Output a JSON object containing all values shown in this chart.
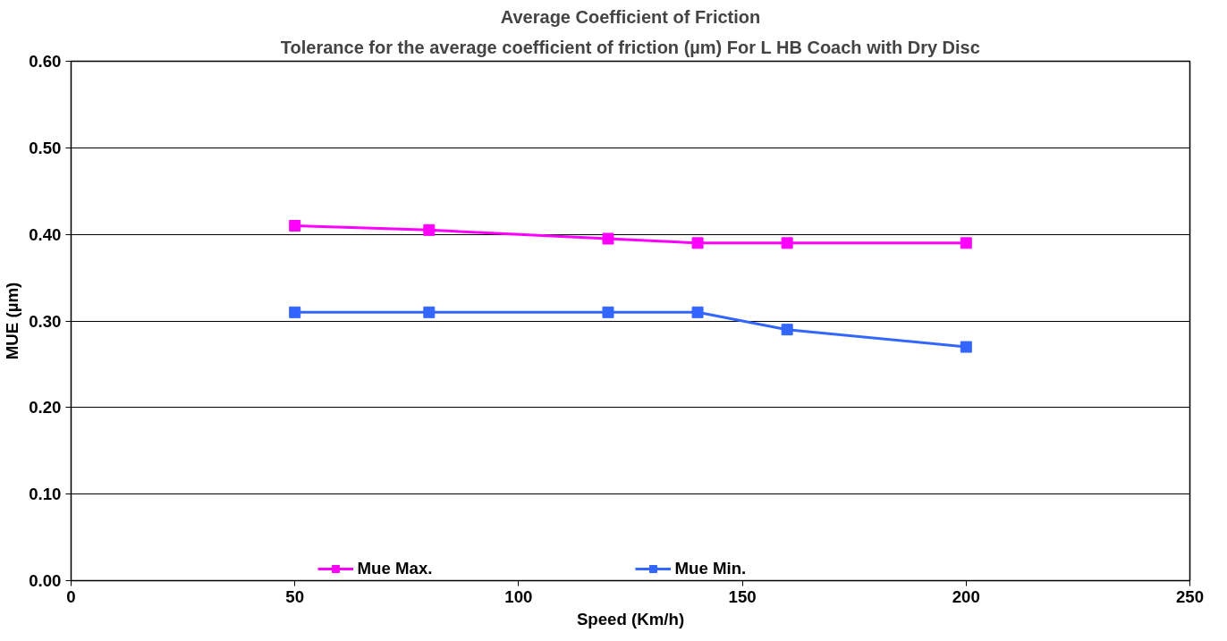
{
  "chart_data": {
    "type": "line",
    "title": "Average Coefficient of Friction",
    "subtitle": "Tolerance for the average coefficient of friction (µm) For L HB Coach with Dry Disc",
    "xlabel": "Speed (Km/h)",
    "ylabel": "MUE (µm)",
    "x": [
      50,
      80,
      120,
      140,
      160,
      200
    ],
    "series": [
      {
        "name": "Mue Max.",
        "color": "#ff00ff",
        "values": [
          0.41,
          0.405,
          0.395,
          0.39,
          0.39,
          0.39
        ]
      },
      {
        "name": "Mue Min.",
        "color": "#3366ff",
        "values": [
          0.31,
          0.31,
          0.31,
          0.31,
          0.29,
          0.27
        ]
      }
    ],
    "xlim": [
      0,
      250
    ],
    "xticks": [
      0,
      50,
      100,
      150,
      200,
      250
    ],
    "ylim": [
      0,
      0.6
    ],
    "yticks": [
      {
        "value": 0,
        "label": "0.00"
      },
      {
        "value": 0.1,
        "label": "0.10"
      },
      {
        "value": 0.2,
        "label": "0.20"
      },
      {
        "value": 0.3,
        "label": "0.30"
      },
      {
        "value": 0.4,
        "label": "0.40"
      },
      {
        "value": 0.5,
        "label": "0.50"
      },
      {
        "value": 0.6,
        "label": "0.60"
      }
    ],
    "grid": "y",
    "legend": "bottom",
    "marker": "square",
    "line_style": "solid"
  }
}
